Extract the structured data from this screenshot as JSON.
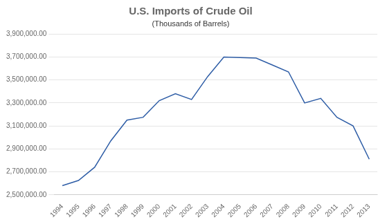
{
  "chart_data": {
    "type": "line",
    "title": "U.S. Imports of Crude Oil",
    "subtitle": "(Thousands of Barrels)",
    "x": [
      1994,
      1995,
      1996,
      1997,
      1998,
      1999,
      2000,
      2001,
      2002,
      2003,
      2004,
      2005,
      2006,
      2007,
      2008,
      2009,
      2010,
      2011,
      2012,
      2013
    ],
    "values": [
      2580000,
      2625000,
      2740000,
      2970000,
      3150000,
      3175000,
      3320000,
      3380000,
      3330000,
      3530000,
      3700000,
      3695000,
      3690000,
      3630000,
      3570000,
      3300000,
      3340000,
      3175000,
      3100000,
      2810000
    ],
    "color": "#2E5DA6",
    "xlim": [
      1993.5,
      2013.5
    ],
    "xticks": [
      1994,
      1995,
      1996,
      1997,
      1998,
      1999,
      2000,
      2001,
      2002,
      2003,
      2004,
      2005,
      2006,
      2007,
      2008,
      2009,
      2010,
      2011,
      2012,
      2013
    ],
    "ylim": [
      2500000,
      3900000
    ],
    "yticks": [
      {
        "value": 2500000,
        "label": "2,500,000.00"
      },
      {
        "value": 2700000,
        "label": "2,700,000.00"
      },
      {
        "value": 2900000,
        "label": "2,900,000.00"
      },
      {
        "value": 3100000,
        "label": "3,100,000.00"
      },
      {
        "value": 3300000,
        "label": "3,300,000.00"
      },
      {
        "value": 3500000,
        "label": "3,500,000.00"
      },
      {
        "value": 3700000,
        "label": "3,700,000.00"
      },
      {
        "value": 3900000,
        "label": "3,900,000.00"
      }
    ],
    "grid": true
  }
}
